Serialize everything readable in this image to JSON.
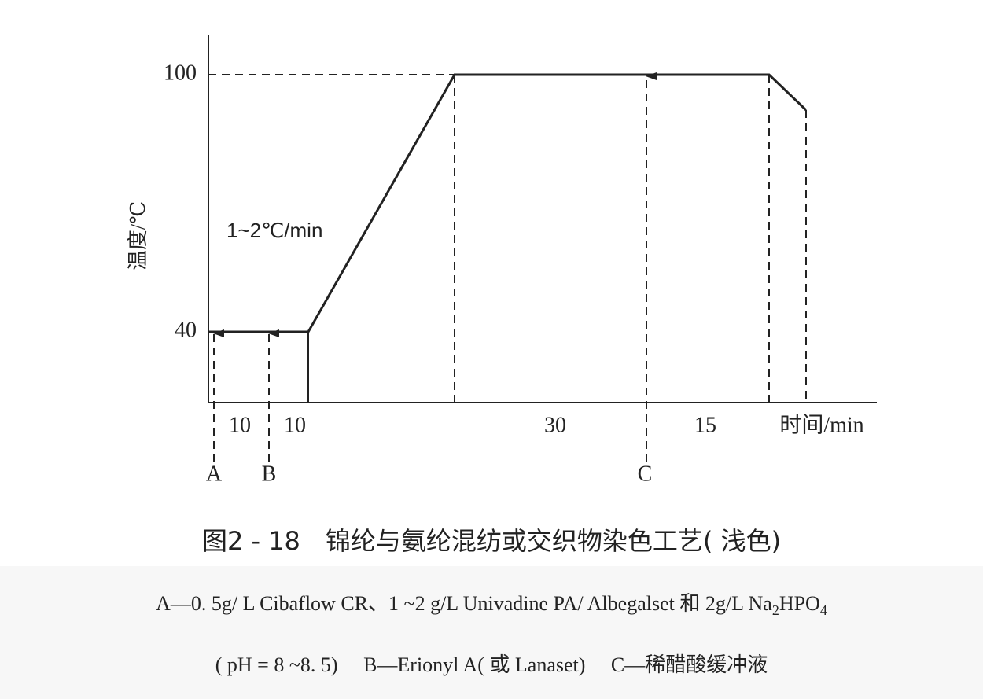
{
  "diagram": {
    "y_axis": {
      "label": "温度/℃",
      "ticks": [
        "100",
        "40"
      ]
    },
    "rate_label": "1~2℃/min",
    "x_axis": {
      "label": "时间/min",
      "segments": [
        "10",
        "10",
        "30",
        "15"
      ]
    },
    "markers": [
      "A",
      "B",
      "C"
    ],
    "caption": "图2 - 18　锦纶与氨纶混纺或交织物染色工艺( 浅色)",
    "notes": {
      "line1": {
        "text": "A—0. 5g/ L Cibaflow CR、1 ~2 g/L Univadine PA/ Albegalset 和 2g/L Na",
        "sub1": "2",
        "mid": "HPO",
        "sub2": "4"
      },
      "line2": "( pH = 8 ~8. 5)　 B—Erionyl A( 或 Lanaset)　 C—稀醋酸缓冲液"
    }
  }
}
